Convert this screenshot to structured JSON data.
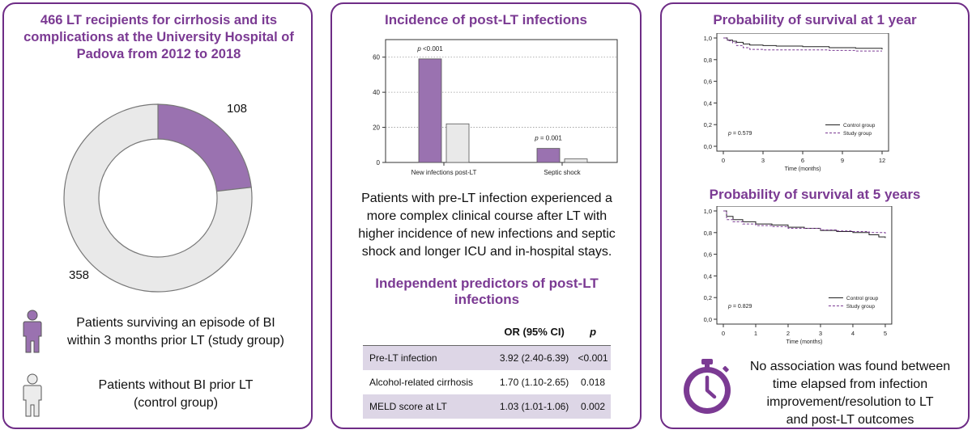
{
  "left": {
    "title_lines": [
      "466 LT recipients for cirrhosis and its",
      "complications at the University Hospital of",
      "Padova from 2012 to 2018"
    ],
    "donut": {
      "study_value": 108,
      "control_value": 358,
      "study_label": "108",
      "control_label": "358",
      "study_color": "#9a72b0",
      "control_color": "#e9e9e9"
    },
    "legend": [
      {
        "icon": "person-icon",
        "color": "#9a72b0",
        "lines": [
          "Patients surviving an episode of BI",
          "within 3 months prior LT (study group)"
        ]
      },
      {
        "icon": "person-icon",
        "color": "#e9e9e9",
        "lines": [
          "Patients without BI prior LT",
          "(control group)"
        ]
      }
    ]
  },
  "middle": {
    "chart_title": "Incidence of post-LT infections",
    "body_lines": [
      "Patients with pre-LT infection experienced a",
      "more complex clinical course after LT with",
      "higher incidence of new infections and septic",
      "shock and longer ICU and in-hospital stays."
    ],
    "predictors_title_lines": [
      "Independent predictors of post-LT",
      "infections"
    ],
    "table": {
      "headers": [
        "",
        "OR (95% CI)",
        "p"
      ],
      "rows": [
        [
          "Pre-LT infection",
          "3.92 (2.40-6.39)",
          "<0.001"
        ],
        [
          "Alcohol-related cirrhosis",
          "1.70 (1.10-2.65)",
          "0.018"
        ],
        [
          "MELD score at LT",
          "1.03 (1.01-1.06)",
          "0.002"
        ]
      ]
    }
  },
  "right": {
    "title_1y": "Probability of survival at 1 year",
    "title_5y": "Probability of survival at 5 years",
    "note_lines": [
      "No association was found between",
      "time elapsed from infection",
      "improvement/resolution to LT",
      "and post-LT outcomes"
    ]
  },
  "chart_data": [
    {
      "type": "bar",
      "title": "Incidence of post-LT infections",
      "categories": [
        "New infections post-LT",
        "Septic shock"
      ],
      "series": [
        {
          "name": "Study group",
          "values": [
            59,
            8
          ],
          "color": "#9a72b0"
        },
        {
          "name": "Control group",
          "values": [
            22,
            2
          ],
          "color": "#e9e9e9"
        }
      ],
      "yticks": [
        0,
        20,
        40,
        60
      ],
      "ylim": [
        0,
        70
      ],
      "pvalues": [
        {
          "p": "p",
          "rest": " <0.001"
        },
        {
          "p": "p",
          "rest": " = 0.001"
        }
      ]
    },
    {
      "type": "line",
      "title": "Probability of survival at 1 year",
      "xlabel": "Time (months)",
      "xlim": [
        0,
        12
      ],
      "ylim": [
        0,
        1
      ],
      "xticks": [
        0,
        3,
        6,
        9,
        12
      ],
      "yticks": [
        0,
        0.2,
        0.4,
        0.6,
        0.8,
        1.0
      ],
      "ytick_labels": [
        "0,0",
        "0,2",
        "0,4",
        "0,6",
        "0,8",
        "1,0"
      ],
      "pvalue": {
        "p": "p",
        "rest": " = 0.579"
      },
      "series": [
        {
          "name": "Control group",
          "style": "solid",
          "x": [
            0,
            0.3,
            0.7,
            1.0,
            1.5,
            2,
            3,
            4,
            6,
            8,
            10,
            12
          ],
          "y": [
            1.0,
            0.98,
            0.97,
            0.96,
            0.945,
            0.935,
            0.93,
            0.925,
            0.92,
            0.91,
            0.905,
            0.895
          ]
        },
        {
          "name": "Study group",
          "style": "dashed",
          "x": [
            0,
            0.3,
            0.7,
            1.0,
            1.5,
            2,
            3,
            5,
            8,
            10,
            12
          ],
          "y": [
            1.0,
            0.975,
            0.955,
            0.93,
            0.91,
            0.895,
            0.89,
            0.89,
            0.885,
            0.88,
            0.88
          ]
        }
      ]
    },
    {
      "type": "line",
      "title": "Probability of survival at 5 years",
      "xlabel": "Time (months)",
      "xlim": [
        0,
        5
      ],
      "ylim": [
        0,
        1
      ],
      "xticks": [
        0,
        1,
        2,
        3,
        4,
        5
      ],
      "yticks": [
        0,
        0.2,
        0.4,
        0.6,
        0.8,
        1.0
      ],
      "ytick_labels": [
        "0,0",
        "0,2",
        "0,4",
        "0,6",
        "0,8",
        "1,0"
      ],
      "pvalue": {
        "p": "p",
        "rest": " = 0.829"
      },
      "series": [
        {
          "name": "Control group",
          "style": "solid",
          "x": [
            0,
            0.1,
            0.3,
            0.6,
            1,
            1.5,
            2,
            2.5,
            3,
            3.5,
            4,
            4.5,
            4.8,
            5
          ],
          "y": [
            1.0,
            0.95,
            0.92,
            0.9,
            0.88,
            0.87,
            0.85,
            0.84,
            0.82,
            0.81,
            0.8,
            0.78,
            0.76,
            0.75
          ]
        },
        {
          "name": "Study group",
          "style": "dashed",
          "x": [
            0,
            0.1,
            0.3,
            0.6,
            1,
            1.5,
            2,
            3,
            3.5,
            4,
            4.5,
            5
          ],
          "y": [
            1.0,
            0.92,
            0.9,
            0.88,
            0.865,
            0.855,
            0.84,
            0.825,
            0.815,
            0.81,
            0.8,
            0.79
          ]
        }
      ]
    }
  ]
}
